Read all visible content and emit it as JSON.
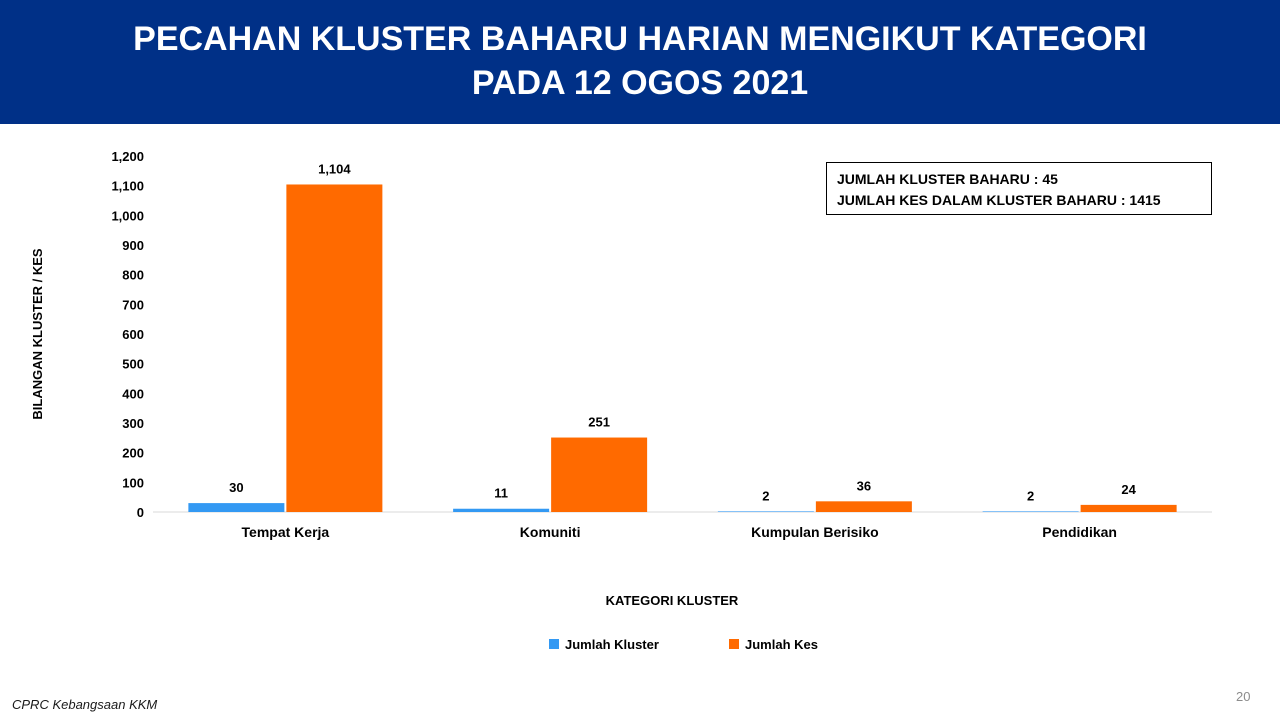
{
  "header": {
    "title_line1": "PECAHAN KLUSTER BAHARU HARIAN MENGIKUT KATEGORI",
    "title_line2": "PADA 12 OGOS 2021"
  },
  "infobox": {
    "line1": "JUMLAH KLUSTER BAHARU : 45",
    "line2": "JUMLAH KES DALAM KLUSTER BAHARU : 1415"
  },
  "footer": {
    "source": "CPRC Kebangsaan KKM",
    "page_number": "20"
  },
  "chart_data": {
    "type": "bar",
    "categories": [
      "Tempat Kerja",
      "Komuniti",
      "Kumpulan Berisiko",
      "Pendidikan"
    ],
    "series": [
      {
        "name": "Jumlah Kluster",
        "values": [
          30,
          11,
          2,
          2
        ],
        "labels": [
          "30",
          "11",
          "2",
          "2"
        ],
        "color": "#3399f3"
      },
      {
        "name": "Jumlah Kes",
        "values": [
          1104,
          251,
          36,
          24
        ],
        "labels": [
          "1,104",
          "251",
          "36",
          "24"
        ],
        "color": "#ff6a00"
      }
    ],
    "xlabel": "KATEGORI KLUSTER",
    "ylabel": "BILANGAN KLUSTER / KES",
    "ylim": [
      0,
      1200
    ],
    "yticks": [
      0,
      100,
      200,
      300,
      400,
      500,
      600,
      700,
      800,
      900,
      1000,
      1100,
      1200
    ],
    "ytick_labels": [
      "0",
      "100",
      "200",
      "300",
      "400",
      "500",
      "600",
      "700",
      "800",
      "900",
      "1,000",
      "1,100",
      "1,200"
    ],
    "grid": false,
    "legend": "bottom-center"
  }
}
